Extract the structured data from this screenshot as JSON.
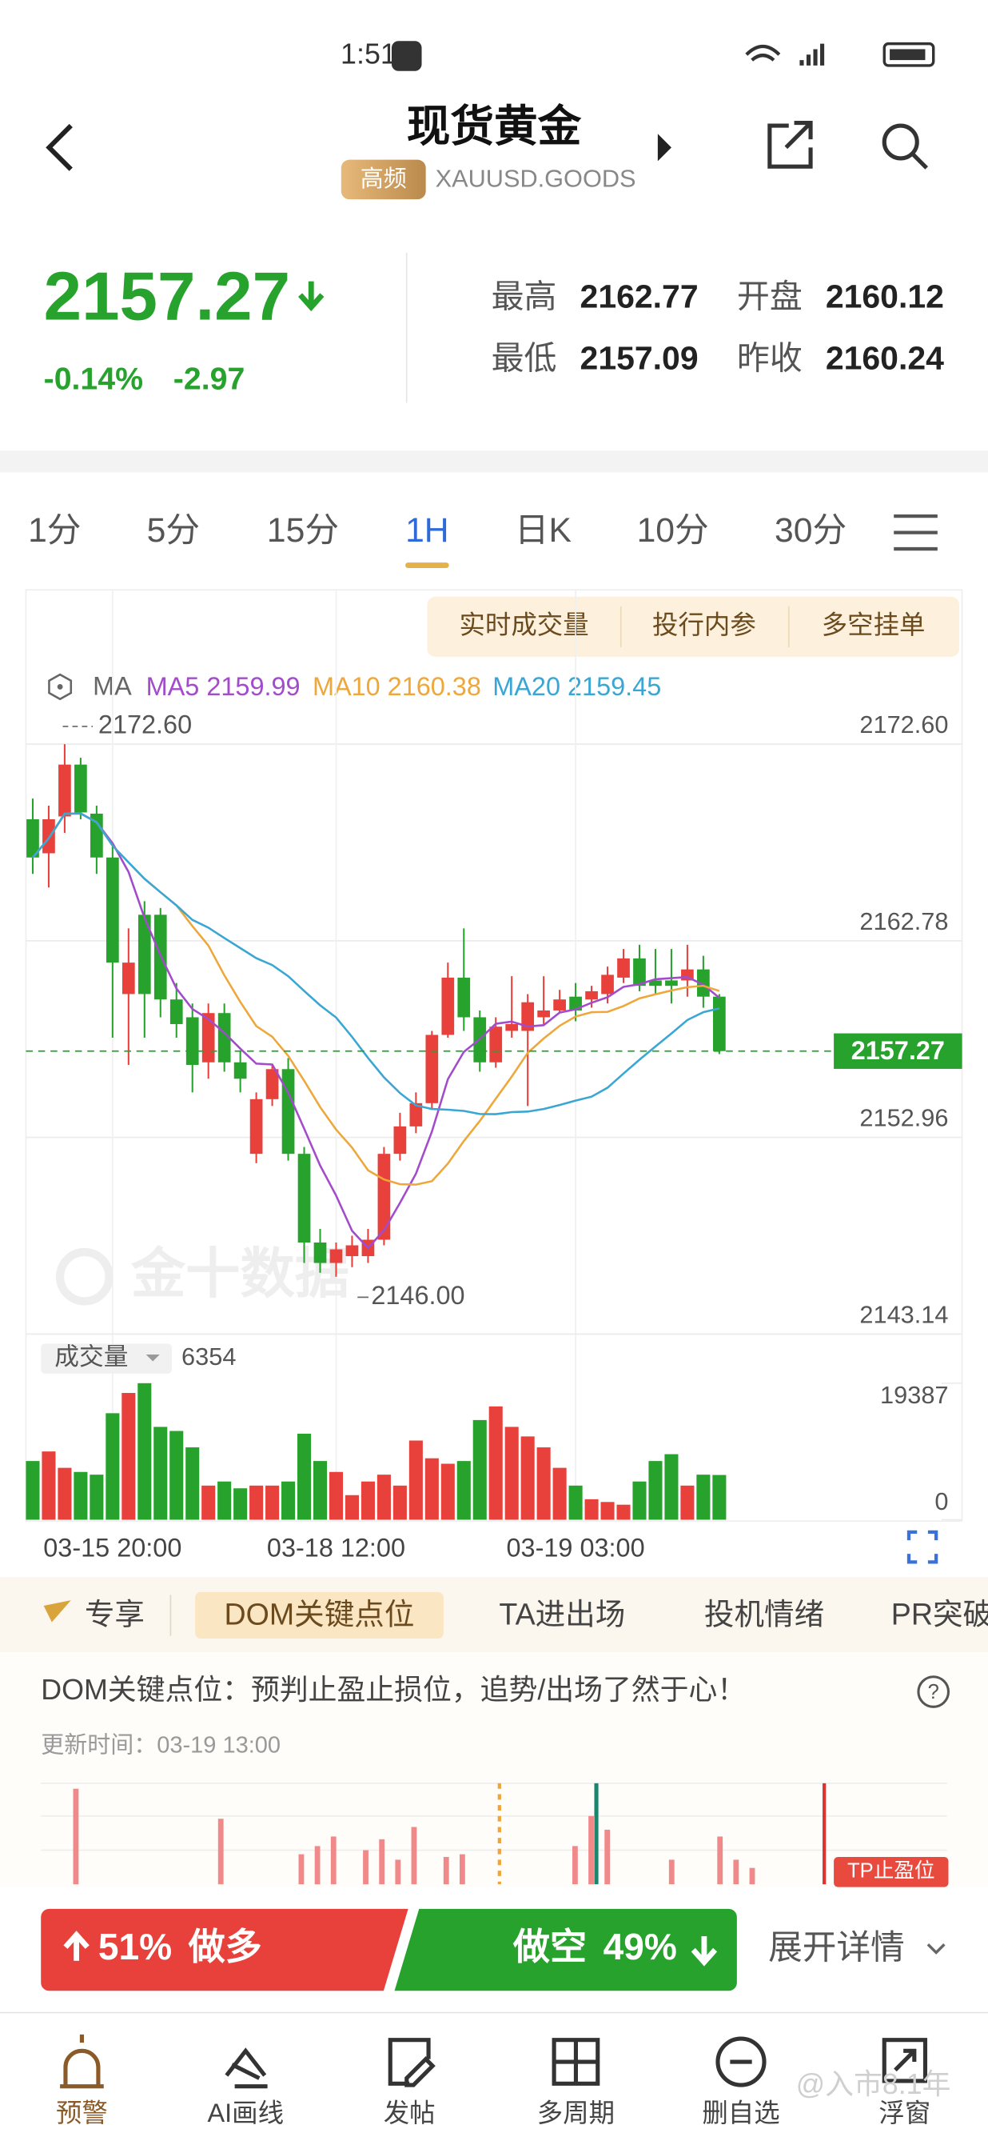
{
  "status_bar": {
    "time": "1:51"
  },
  "header": {
    "title": "现货黄金",
    "badge": "高频",
    "symbol": "XAUUSD.GOODS"
  },
  "quote": {
    "price": "2157.27",
    "change_pct": "-0.14%",
    "change": "-2.97",
    "stats": [
      {
        "label": "最高",
        "value": "2162.77"
      },
      {
        "label": "开盘",
        "value": "2160.12"
      },
      {
        "label": "最低",
        "value": "2157.09"
      },
      {
        "label": "昨收",
        "value": "2160.24"
      }
    ]
  },
  "tabs": [
    "1分",
    "5分",
    "15分",
    "1H",
    "日K",
    "10分",
    "30分"
  ],
  "chart_buttons": [
    "实时成交量",
    "投行内参",
    "多空挂单"
  ],
  "chart_data": {
    "type": "candlestick",
    "watermark": "金十数据",
    "ma_label": "MA",
    "ma": [
      {
        "name": "MA5",
        "value": 2159.99,
        "color": "#a24ccb"
      },
      {
        "name": "MA10",
        "value": 2160.38,
        "color": "#eea73a"
      },
      {
        "name": "MA20",
        "value": 2159.45,
        "color": "#3aa6d4"
      }
    ],
    "categories": [
      null,
      null,
      null,
      null,
      null,
      "03-15 20:00",
      null,
      null,
      null,
      null,
      null,
      null,
      null,
      null,
      null,
      null,
      null,
      null,
      null,
      "03-18 12:00",
      null,
      null,
      null,
      null,
      null,
      null,
      null,
      null,
      null,
      null,
      null,
      null,
      null,
      null,
      "03-19 03:00",
      null,
      null,
      null,
      null,
      null,
      null,
      null,
      null,
      null
    ],
    "open": [
      2168.85,
      2167.15,
      2168.99,
      2171.58,
      2169.13,
      2166.94,
      2160.12,
      2164.08,
      2164.08,
      2159.85,
      2158.96,
      2156.71,
      2159.17,
      2156.71,
      2152.14,
      2154.87,
      2156.37,
      2152.14,
      2147.71,
      2146.69,
      2147.03,
      2147.03,
      2147.85,
      2152.14,
      2153.51,
      2154.67,
      2158.08,
      2160.94,
      2158.96,
      2156.71,
      2158.28,
      2158.28,
      2158.96,
      2159.3,
      2159.99,
      2159.85,
      2160.12,
      2160.94,
      2161.9,
      2160.8,
      2160.8,
      2160.8,
      2161.35,
      2159.99
    ],
    "high": [
      2169.88,
      2169.53,
      2172.6,
      2171.92,
      2169.53,
      2167.49,
      2163.4,
      2164.76,
      2164.42,
      2160.67,
      2159.65,
      2159.65,
      2159.65,
      2157.26,
      2155.21,
      2156.58,
      2156.92,
      2152.48,
      2148.39,
      2147.71,
      2148.05,
      2148.39,
      2152.48,
      2154.19,
      2155.21,
      2158.28,
      2161.69,
      2163.4,
      2159.3,
      2158.96,
      2161.01,
      2160.12,
      2161.01,
      2160.33,
      2160.67,
      2160.53,
      2161.49,
      2162.37,
      2162.58,
      2162.37,
      2162.37,
      2162.58,
      2162.03,
      2160.12
    ],
    "low": [
      2166.12,
      2165.44,
      2168.17,
      2168.85,
      2166.12,
      2157.94,
      2156.58,
      2157.94,
      2158.96,
      2157.94,
      2155.21,
      2155.89,
      2156.24,
      2155.21,
      2151.67,
      2154.53,
      2151.8,
      2146.69,
      2146.2,
      2146.0,
      2146.48,
      2146.69,
      2147.57,
      2151.8,
      2153.17,
      2154.39,
      2157.94,
      2158.28,
      2156.24,
      2156.44,
      2157.94,
      2154.53,
      2158.62,
      2159.17,
      2158.76,
      2159.44,
      2159.65,
      2160.67,
      2160.26,
      2160.12,
      2159.65,
      2159.99,
      2159.44,
      2157.12
    ],
    "close": [
      2166.94,
      2168.85,
      2171.58,
      2169.19,
      2166.94,
      2161.69,
      2161.69,
      2160.12,
      2159.85,
      2158.62,
      2156.58,
      2159.17,
      2156.71,
      2155.89,
      2154.87,
      2156.37,
      2152.14,
      2147.71,
      2146.69,
      2147.37,
      2147.57,
      2147.85,
      2152.14,
      2153.51,
      2154.67,
      2158.08,
      2160.94,
      2158.96,
      2156.71,
      2158.49,
      2158.62,
      2159.71,
      2159.3,
      2159.85,
      2159.3,
      2160.26,
      2161.08,
      2161.9,
      2160.53,
      2160.53,
      2160.53,
      2161.35,
      2159.99,
      2157.27
    ],
    "colors": {
      "up": "#e8413b",
      "down": "#27a22d"
    },
    "ylim": [
      2143.14,
      2172.6
    ],
    "yticks": [
      {
        "value": 2172.6,
        "label": "2172.60"
      },
      2162.78,
      2152.96,
      2143.14
    ],
    "last_price": 2157.27,
    "high_mark": {
      "value": 2172.6,
      "label": "2172.60"
    },
    "low_mark": {
      "value": 2146.0,
      "label": "2146.00"
    },
    "volume": {
      "label": "成交量",
      "current": 6354,
      "values": [
        8336,
        9694,
        7367,
        6785,
        6398,
        15122,
        18000,
        19387,
        13183,
        12602,
        10275,
        4847,
        5428,
        4459,
        4847,
        4847,
        5428,
        12214,
        8336,
        6785,
        3490,
        5428,
        6398,
        4847,
        11244,
        8724,
        7949,
        8336,
        14153,
        16091,
        13183,
        11826,
        10275,
        7367,
        4847,
        2908,
        2520,
        2133,
        5428,
        8336,
        9306,
        4847,
        6398,
        6354
      ],
      "ylim": [
        0,
        19387
      ],
      "yticks": [
        19387,
        0
      ]
    }
  },
  "section_tabs": [
    "专享",
    "DOM关键点位",
    "TA进出场",
    "投机情绪",
    "PR突破"
  ],
  "dom": {
    "title": "DOM关键点位：预判止盈止损位，追势/出场了然于心！",
    "updated": "更新时间：03-19 13:00",
    "tag": "TP止盈位",
    "values": [
      0,
      0,
      70,
      0,
      0,
      0,
      0,
      0,
      0,
      0,
      0,
      48,
      0,
      0,
      0,
      0,
      22,
      28,
      35,
      0,
      25,
      33,
      18,
      42,
      0,
      20,
      22,
      0,
      0,
      0,
      0,
      0,
      0,
      28,
      50,
      40,
      0,
      0,
      0,
      18,
      0,
      0,
      35,
      18,
      12,
      0,
      0,
      0,
      0,
      0,
      0,
      0,
      0,
      0,
      0,
      0
    ]
  },
  "sentiment": {
    "long": {
      "value": 51,
      "label": "51%",
      "text": "做多"
    },
    "short": {
      "value": 49,
      "label": "49%",
      "text": "做空"
    },
    "more": "展开详情"
  },
  "nav": [
    "预警",
    "AI画线",
    "发帖",
    "多周期",
    "删自选",
    "浮窗"
  ],
  "watermark": "@入市8.1年"
}
